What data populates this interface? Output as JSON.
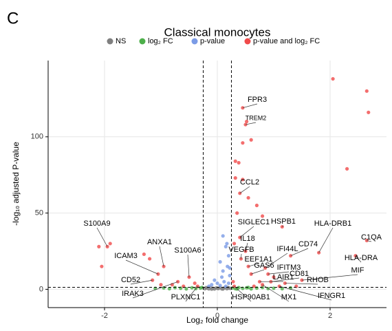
{
  "panel_label": "C",
  "chart_data": {
    "type": "scatter",
    "title": "Classical monocytes",
    "xlabel": "Log₂ fold change",
    "ylabel": "-log₁₀ adjusted P-value",
    "xlim": [
      -3,
      3
    ],
    "ylim": [
      -12,
      150
    ],
    "xticks": [
      -2,
      0,
      2
    ],
    "yticks": [
      0,
      50,
      100
    ],
    "grid": true,
    "fc_cutoff": [
      -0.25,
      0.25
    ],
    "p_cutoff": 1.3,
    "series": [
      {
        "name": "NS",
        "color": "#7f7f7f",
        "x": [
          -0.22,
          -0.18,
          -0.15,
          -0.12,
          -0.08,
          -0.05,
          -0.02,
          0.02,
          0.05,
          0.08,
          0.11,
          0.14,
          0.17,
          0.2,
          0.23,
          -0.2,
          -0.1,
          0.0,
          0.1,
          0.19
        ],
        "values": [
          0.4,
          0.8,
          0.3,
          1.0,
          0.6,
          0.2,
          0.9,
          0.5,
          1.1,
          0.3,
          0.7,
          1.0,
          0.4,
          0.8,
          0.6,
          1.1,
          0.1,
          0.7,
          0.2,
          1.2
        ]
      },
      {
        "name": "log₂ FC",
        "color": "#4daf4a",
        "x": [
          -1.1,
          -0.95,
          -0.85,
          -0.75,
          -0.65,
          -0.55,
          -0.45,
          -0.38,
          -0.3,
          -0.27,
          0.27,
          0.32,
          0.38,
          0.45,
          0.52,
          0.6,
          0.7,
          0.8,
          0.9,
          1.0,
          1.15,
          1.3,
          0.35,
          0.55
        ],
        "values": [
          0.6,
          0.9,
          0.4,
          1.1,
          0.7,
          0.3,
          1.0,
          0.5,
          0.8,
          1.2,
          0.9,
          0.4,
          1.1,
          0.6,
          1.0,
          0.3,
          0.8,
          1.2,
          0.5,
          0.7,
          0.4,
          0.9,
          0.2,
          1.2
        ]
      },
      {
        "name": "p-value",
        "color": "#7b9be6",
        "x": [
          0.1,
          0.15,
          0.2,
          0.05,
          0.18,
          0.1,
          0.22,
          -0.05,
          0.12,
          0.2,
          -0.1,
          0.05,
          0.15,
          0.08,
          0.22,
          -0.15,
          0.0,
          0.17
        ],
        "values": [
          35,
          28,
          22,
          18,
          15,
          12,
          9,
          6,
          5,
          4,
          3,
          2.5,
          2,
          8,
          14,
          2,
          4,
          30
        ]
      },
      {
        "name": "p-value and log₂ FC",
        "color": "#f04a4a",
        "x": [
          2.05,
          2.65,
          2.68,
          2.3,
          0.45,
          0.5,
          0.52,
          0.6,
          0.45,
          0.32,
          0.38,
          0.32,
          0.45,
          0.4,
          0.55,
          0.7,
          0.35,
          0.8,
          1.15,
          1.8,
          2.65,
          2.45,
          1.3,
          -1.95,
          -1.9,
          -2.1,
          -2.05,
          -1.3,
          -1.2,
          -0.95,
          -1.05,
          -1.15,
          -0.5,
          -0.7,
          -0.4,
          -0.8,
          -0.6,
          -1.0,
          -0.35,
          0.3,
          0.4,
          0.42,
          0.55,
          0.6,
          0.9,
          0.95,
          0.75,
          1.2,
          1.1,
          0.8,
          0.3,
          1.5,
          1.0,
          0.65,
          1.4,
          0.28,
          0.5,
          0.85
        ],
        "values": [
          138,
          130,
          116,
          79,
          119,
          108,
          110,
          98,
          96,
          84,
          83,
          73,
          72,
          63,
          60,
          55,
          50,
          48,
          41,
          24,
          32,
          22,
          22,
          28,
          30,
          28,
          15,
          23,
          20,
          15,
          10,
          6,
          8,
          5,
          4,
          3,
          2,
          3,
          2,
          30,
          34,
          20,
          15,
          10,
          10,
          5,
          5,
          4,
          2,
          3,
          2,
          6,
          8,
          2,
          2,
          5,
          25,
          14
        ]
      }
    ],
    "annotations": [
      {
        "text": "FPR3",
        "x": 0.45,
        "y": 119
      },
      {
        "text": "TREM2",
        "x": 0.5,
        "y": 108
      },
      {
        "text": "CCL2",
        "x": 0.4,
        "y": 63
      },
      {
        "text": "SIGLEC1",
        "x": 0.4,
        "y": 34
      },
      {
        "text": "HSPB1",
        "x": 1.15,
        "y": 41
      },
      {
        "text": "HLA-DRB1",
        "x": 1.8,
        "y": 24
      },
      {
        "text": "C1QA",
        "x": 2.65,
        "y": 32
      },
      {
        "text": "HLA-DRA",
        "x": 2.45,
        "y": 22
      },
      {
        "text": "CD74",
        "x": 1.3,
        "y": 22
      },
      {
        "text": "IL18",
        "x": 0.5,
        "y": 25
      },
      {
        "text": "IFI44L",
        "x": 0.85,
        "y": 14
      },
      {
        "text": "VEGFB",
        "x": 0.42,
        "y": 20
      },
      {
        "text": "EEF1A1",
        "x": 0.55,
        "y": 15
      },
      {
        "text": "GAS6",
        "x": 0.6,
        "y": 10
      },
      {
        "text": "IFITM3",
        "x": 0.9,
        "y": 10
      },
      {
        "text": "MIF",
        "x": 1.5,
        "y": 6
      },
      {
        "text": "CD81",
        "x": 0.95,
        "y": 5
      },
      {
        "text": "LAIR1",
        "x": 0.75,
        "y": 5
      },
      {
        "text": "RHOB",
        "x": 1.2,
        "y": 4
      },
      {
        "text": "IFNGR1",
        "x": 1.1,
        "y": 2
      },
      {
        "text": "MX1",
        "x": 0.8,
        "y": 3
      },
      {
        "text": "HSP90AB1",
        "x": 0.3,
        "y": 2
      },
      {
        "text": "PLXNC1",
        "x": -0.35,
        "y": 2
      },
      {
        "text": "IRAK3",
        "x": -0.7,
        "y": 5
      },
      {
        "text": "CD52",
        "x": -1.15,
        "y": 6
      },
      {
        "text": "ICAM3",
        "x": -1.05,
        "y": 10
      },
      {
        "text": "ANXA1",
        "x": -0.95,
        "y": 15
      },
      {
        "text": "S100A6",
        "x": -0.5,
        "y": 8
      },
      {
        "text": "S100A9",
        "x": -1.95,
        "y": 28
      }
    ]
  }
}
